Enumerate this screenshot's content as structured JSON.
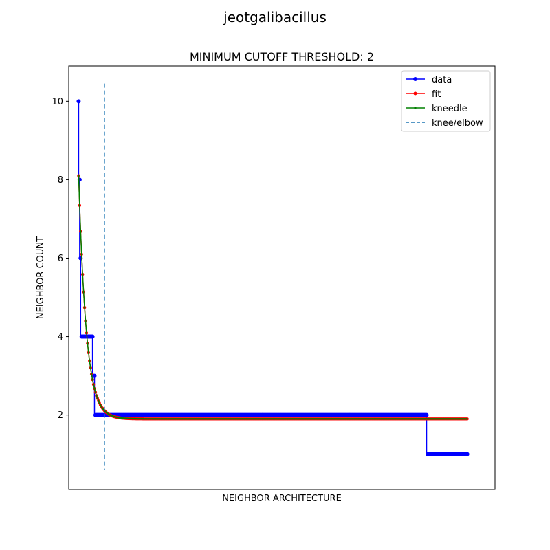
{
  "chart_data": {
    "type": "line",
    "suptitle": "jeotgalibacillus",
    "title": "MINIMUM CUTOFF THRESHOLD: 2",
    "xlabel": "NEIGHBOR ARCHITECTURE",
    "ylabel": "NEIGHBOR COUNT",
    "xlim": [
      -10,
      420
    ],
    "ylim": [
      0.1,
      10.9
    ],
    "x_ticks_shown": false,
    "y_ticks": [
      2,
      4,
      6,
      8,
      10
    ],
    "y_tick_labels": [
      "2",
      "4",
      "6",
      "8",
      "10"
    ],
    "grid": false,
    "legend_position": "top-right",
    "legend": [
      "data",
      "fit",
      "kneedle",
      "knee/elbow"
    ],
    "series": [
      {
        "name": "data",
        "color": "#0000ff",
        "marker": "circle",
        "steps": [
          {
            "x_start": 0,
            "x_end": 0,
            "y": 10
          },
          {
            "x_start": 1,
            "x_end": 1,
            "y": 8
          },
          {
            "x_start": 2,
            "x_end": 2,
            "y": 6
          },
          {
            "x_start": 3,
            "x_end": 14,
            "y": 4
          },
          {
            "x_start": 15,
            "x_end": 16,
            "y": 3
          },
          {
            "x_start": 17,
            "x_end": 351,
            "y": 2
          },
          {
            "x_start": 352,
            "x_end": 392,
            "y": 1
          }
        ]
      },
      {
        "name": "fit",
        "color": "#ff0000",
        "marker": "dot",
        "model": {
          "baseline": 1.9,
          "amplitude": 6.2,
          "decay": 0.13
        },
        "x_range": [
          0,
          392
        ]
      },
      {
        "name": "kneedle",
        "color": "#008000",
        "marker": "tiny-dot",
        "model": {
          "baseline": 1.9,
          "amplitude": 6.2,
          "decay": 0.13
        },
        "x_range": [
          0,
          392
        ]
      }
    ],
    "knee": {
      "name": "knee/elbow",
      "x": 26,
      "color": "#1f77b4",
      "style": "dashed",
      "y_range": [
        0.6,
        10.45
      ]
    }
  }
}
